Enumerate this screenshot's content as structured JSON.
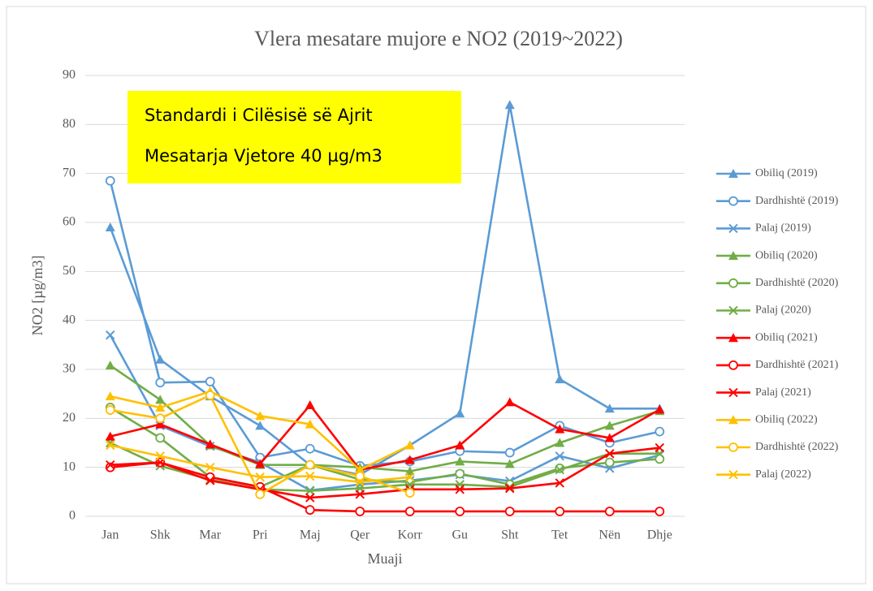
{
  "chart_data": {
    "type": "line",
    "title": "Vlera mesatare mujore e NO2 (2019~2022)",
    "x_label": "Muaji",
    "y_label": "NO2 [µg/m3]",
    "annotation": [
      "Standardi i Cilësisë së Ajrit",
      "Mesatarja Vjetore 40 µg/m3"
    ],
    "categories": [
      "Jan",
      "Shk",
      "Mar",
      "Pri",
      "Maj",
      "Qer",
      "Korr",
      "Gu",
      "Sht",
      "Tet",
      "Nën",
      "Dhje"
    ],
    "ylim": [
      0,
      90
    ],
    "yticks": [
      0,
      10,
      20,
      30,
      40,
      50,
      60,
      70,
      80,
      90
    ],
    "grid": true,
    "legend": "right",
    "series": [
      {
        "name": "Obiliq (2019)",
        "color": "#5b9bd5",
        "marker": "triangle",
        "values": [
          59,
          32,
          24.5,
          18.5,
          10.5,
          8.5,
          14.5,
          21,
          84,
          28,
          22,
          22
        ]
      },
      {
        "name": "Dardhishtë (2019)",
        "color": "#5b9bd5",
        "marker": "circle",
        "values": [
          68.5,
          27.3,
          27.5,
          12,
          13.8,
          10.3,
          11.2,
          13.3,
          13,
          18.5,
          15,
          17.3
        ]
      },
      {
        "name": "Palaj (2019)",
        "color": "#5b9bd5",
        "marker": "x",
        "values": [
          37,
          18.5,
          14.3,
          11,
          5.3,
          6.5,
          7.3,
          8.5,
          7.2,
          12.3,
          9.8,
          12.5
        ]
      },
      {
        "name": "Obiliq (2020)",
        "color": "#70ad47",
        "marker": "triangle",
        "values": [
          30.8,
          23.8,
          14.5,
          10.5,
          10.5,
          10,
          9.2,
          11.2,
          10.7,
          15,
          18.5,
          21.5
        ]
      },
      {
        "name": "Dardhishtë (2020)",
        "color": "#70ad47",
        "marker": "circle",
        "values": [
          22.2,
          16,
          8,
          6,
          10.5,
          7.5,
          7,
          8.7,
          6.5,
          9.8,
          11,
          11.7
        ]
      },
      {
        "name": "Palaj (2020)",
        "color": "#70ad47",
        "marker": "x",
        "values": [
          15,
          10.3,
          7.5,
          5.5,
          5.2,
          5.7,
          6.5,
          6.5,
          6,
          9.5,
          12.8,
          12.8
        ]
      },
      {
        "name": "Obiliq (2021)",
        "color": "#ff0000",
        "marker": "triangle",
        "values": [
          16.3,
          18.8,
          14.7,
          10.7,
          22.7,
          9.5,
          11.5,
          14.5,
          23.3,
          17.8,
          16,
          21.8
        ]
      },
      {
        "name": "Dardhishtë (2021)",
        "color": "#ff0000",
        "marker": "circle",
        "values": [
          10,
          11,
          8,
          6,
          1.3,
          1,
          1,
          1,
          1,
          1,
          1,
          1
        ]
      },
      {
        "name": "Palaj (2021)",
        "color": "#ff0000",
        "marker": "x",
        "values": [
          10.5,
          11,
          7.3,
          5.5,
          3.8,
          4.5,
          5.5,
          5.5,
          5.7,
          6.8,
          12.8,
          14
        ]
      },
      {
        "name": "Obiliq (2022)",
        "color": "#ffc000",
        "marker": "triangle",
        "values": [
          24.5,
          22.2,
          25.5,
          20.5,
          18.8,
          9.5,
          14.5,
          null,
          null,
          null,
          null,
          null
        ]
      },
      {
        "name": "Dardhishtë (2022)",
        "color": "#ffc000",
        "marker": "circle",
        "values": [
          21.7,
          20,
          24.7,
          4.5,
          10.5,
          8.2,
          4.8,
          null,
          null,
          null,
          null,
          null
        ]
      },
      {
        "name": "Palaj (2022)",
        "color": "#ffc000",
        "marker": "x",
        "values": [
          14.5,
          12.3,
          10,
          8,
          8.2,
          7,
          8,
          null,
          null,
          null,
          null,
          null
        ]
      }
    ]
  }
}
